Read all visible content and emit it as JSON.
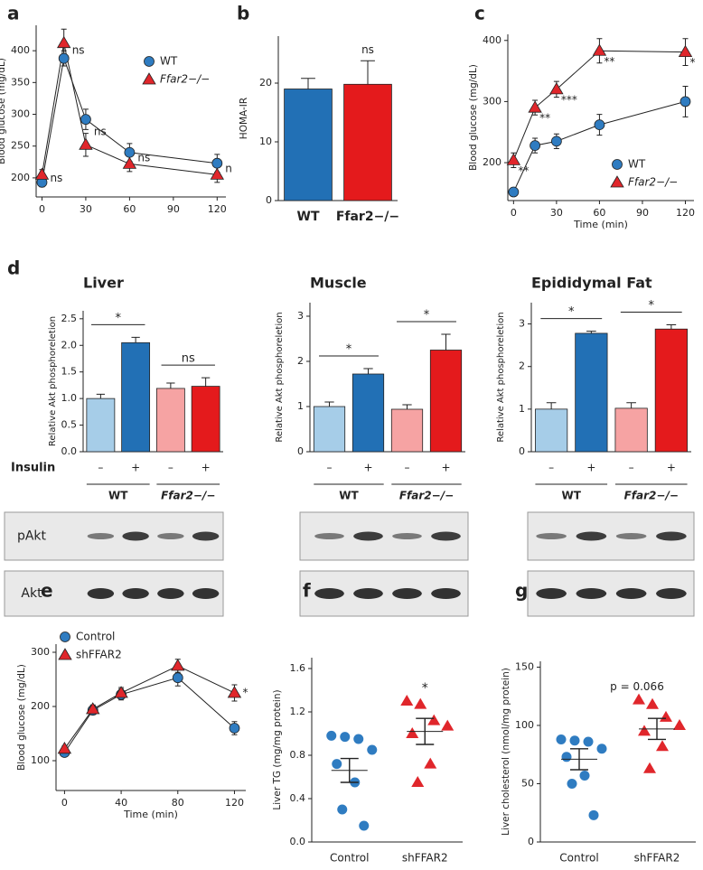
{
  "chart_data": [
    {
      "type": "line",
      "label": "a",
      "ylabel": "Blood glucose (mg/dL)",
      "x": [
        0,
        15,
        30,
        60,
        120
      ],
      "xlim": [
        -4,
        126
      ],
      "xticks": [
        0,
        30,
        60,
        90,
        120
      ],
      "ylim": [
        170,
        440
      ],
      "yticks": [
        200,
        250,
        300,
        350,
        400
      ],
      "legend": "upper right",
      "series": [
        {
          "name": "WT",
          "color": "#2f7cc1",
          "marker": "circle",
          "values": [
            193,
            388,
            292,
            240,
            223
          ],
          "errors": [
            7,
            12,
            16,
            14,
            14
          ]
        },
        {
          "name": "Ffar2−/−",
          "color": "#e0262b",
          "marker": "triangle",
          "values": [
            205,
            412,
            252,
            222,
            205
          ],
          "errors": [
            8,
            22,
            18,
            12,
            12
          ]
        }
      ],
      "annotations": [
        "ns",
        "ns",
        "ns",
        "ns",
        "n"
      ]
    },
    {
      "type": "bar",
      "label": "b",
      "ylabel": "HOMA-IR",
      "categories": [
        "WT",
        "Ffar2−/−"
      ],
      "values": [
        19,
        19.8
      ],
      "errors": [
        1.8,
        4
      ],
      "colors": [
        "#2270b5",
        "#e41a1c"
      ],
      "ylim": [
        0,
        28
      ],
      "yticks": [
        0,
        10,
        20
      ],
      "annotations": [
        "ns"
      ]
    },
    {
      "type": "line",
      "label": "c",
      "ylabel": "Blood glucose (mg/dL)",
      "xlabel": "Time (min)",
      "x": [
        0,
        15,
        30,
        60,
        120
      ],
      "xlim": [
        -4,
        126
      ],
      "xticks": [
        0,
        30,
        60,
        90,
        120
      ],
      "ylim": [
        138,
        410
      ],
      "yticks": [
        200,
        300,
        400
      ],
      "legend": "lower right",
      "series": [
        {
          "name": "WT",
          "color": "#2f7cc1",
          "marker": "circle",
          "values": [
            152,
            228,
            235,
            262,
            300
          ],
          "errors": [
            5,
            12,
            12,
            17,
            25
          ]
        },
        {
          "name": "Ffar2−/−",
          "color": "#e0262b",
          "marker": "triangle",
          "values": [
            204,
            290,
            320,
            383,
            381
          ],
          "errors": [
            12,
            12,
            13,
            20,
            22
          ]
        }
      ],
      "annotations": [
        "**",
        "**",
        "***",
        "**",
        "*"
      ]
    },
    {
      "type": "bar",
      "label": "d",
      "title": "Liver",
      "ylabel": "Relative Akt phosphoreletion",
      "x_title": "Insulin",
      "categories": [
        "–",
        "+",
        "–",
        "+"
      ],
      "groups": [
        "WT",
        "Ffar2−/−"
      ],
      "blot_labels": [
        "pAkt",
        "Akt"
      ],
      "values": [
        1.0,
        2.05,
        1.19,
        1.23
      ],
      "errors": [
        0.08,
        0.1,
        0.1,
        0.16
      ],
      "colors": [
        "#a6cde8",
        "#2270b5",
        "#f6a3a3",
        "#e41a1c"
      ],
      "ylim": [
        0,
        2.65
      ],
      "yticks": [
        {
          "value": 0,
          "label": "0.0"
        },
        0.5,
        {
          "value": 1,
          "label": "1.0"
        },
        1.5,
        {
          "value": 2,
          "label": "2.0"
        },
        2.5
      ],
      "annotations": [
        "*",
        "ns"
      ]
    },
    {
      "type": "bar",
      "title": "Muscle",
      "ylabel": "Relative Akt phosphoreletion",
      "categories": [
        "–",
        "+",
        "–",
        "+"
      ],
      "groups": [
        "WT",
        "Ffar2−/−"
      ],
      "values": [
        1.0,
        1.72,
        0.94,
        2.25
      ],
      "errors": [
        0.1,
        0.12,
        0.1,
        0.35
      ],
      "colors": [
        "#a6cde8",
        "#2270b5",
        "#f6a3a3",
        "#e41a1c"
      ],
      "ylim": [
        0,
        3.3
      ],
      "yticks": [
        0,
        1,
        2,
        3
      ],
      "annotations": [
        "*",
        "*"
      ]
    },
    {
      "type": "bar",
      "title": "Epididymal Fat",
      "ylabel": "Relative Akt phosphoreletion",
      "categories": [
        "–",
        "+",
        "–",
        "+"
      ],
      "groups": [
        "WT",
        "Ffar2−/−"
      ],
      "values": [
        1.0,
        2.78,
        1.02,
        2.88
      ],
      "errors": [
        0.15,
        0.05,
        0.13,
        0.1
      ],
      "colors": [
        "#a6cde8",
        "#2270b5",
        "#f6a3a3",
        "#e41a1c"
      ],
      "ylim": [
        0,
        3.5
      ],
      "yticks": [
        0,
        1,
        2,
        3
      ],
      "annotations": [
        "*",
        "*"
      ]
    },
    {
      "type": "line",
      "label": "e",
      "ylabel": "Blood glucose (mg/dL)",
      "xlabel": "Time (min)",
      "x": [
        0,
        20,
        40,
        80,
        120
      ],
      "xlim": [
        -6,
        128
      ],
      "xticks": [
        0,
        40,
        80,
        120
      ],
      "ylim": [
        45,
        315
      ],
      "yticks": [
        100,
        200,
        300
      ],
      "legend": "upper left",
      "series": [
        {
          "name": "Control",
          "color": "#2f7cc1",
          "marker": "circle",
          "values": [
            115,
            193,
            222,
            253,
            160
          ],
          "errors": [
            5,
            8,
            10,
            15,
            12
          ]
        },
        {
          "name": "shFFAR2",
          "color": "#e0262b",
          "marker": "triangle",
          "values": [
            122,
            195,
            225,
            275,
            225
          ],
          "errors": [
            5,
            8,
            10,
            12,
            15
          ]
        }
      ],
      "annotations": [
        "*"
      ]
    },
    {
      "type": "scatter",
      "label": "f",
      "ylabel": "Liver TG (mg/mg protein)",
      "categories": [
        "Control",
        "shFFAR2"
      ],
      "ylim": [
        0,
        1.7
      ],
      "yticks": [
        {
          "value": 0,
          "label": "0.0"
        },
        0.4,
        0.8,
        1.2,
        1.6
      ],
      "series": [
        {
          "color": "#2f7cc1",
          "marker": "circle",
          "values": [
            0.98,
            0.97,
            0.95,
            0.85,
            0.72,
            0.55,
            0.3,
            0.15
          ],
          "mean": 0.66,
          "sem": 0.11
        },
        {
          "color": "#e0262b",
          "marker": "triangle",
          "values": [
            1.3,
            1.27,
            1.12,
            1.07,
            1.0,
            0.72,
            0.55
          ],
          "mean": 1.02,
          "sem": 0.12
        }
      ],
      "annotations": [
        "*"
      ]
    },
    {
      "type": "scatter",
      "label": "g",
      "ylabel": "Liver cholesterol (nmol/mg protein)",
      "categories": [
        "Control",
        "shFFAR2"
      ],
      "ylim": [
        0,
        155
      ],
      "yticks": [
        0,
        50,
        100,
        150
      ],
      "series": [
        {
          "color": "#2f7cc1",
          "marker": "circle",
          "values": [
            88,
            87,
            86,
            80,
            73,
            57,
            50,
            23
          ],
          "mean": 71,
          "sem": 9
        },
        {
          "color": "#e0262b",
          "marker": "triangle",
          "values": [
            122,
            118,
            107,
            100,
            95,
            82,
            63
          ],
          "mean": 97,
          "sem": 9
        }
      ],
      "annotations": [
        "p = 0.066"
      ]
    }
  ]
}
